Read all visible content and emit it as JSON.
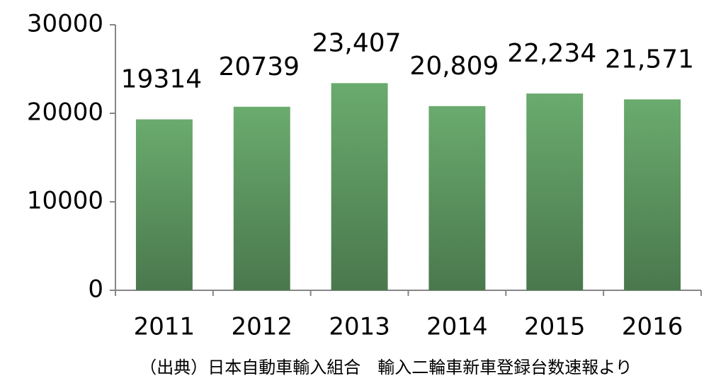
{
  "chart_data": {
    "type": "bar",
    "categories": [
      "2011",
      "2012",
      "2013",
      "2014",
      "2015",
      "2016"
    ],
    "values": [
      19314,
      20739,
      23407,
      20809,
      22234,
      21571
    ],
    "value_labels": [
      "19314",
      "20739",
      "23,407",
      "20,809",
      "22,234",
      "21,571"
    ],
    "color": "#6aab6e",
    "ylim": [
      0,
      30000
    ],
    "yticks": [
      0,
      10000,
      20000,
      30000
    ],
    "grid": false,
    "source": "（出典）日本自動車輸入組合　輸入二輪車新車登録台数速報より"
  }
}
